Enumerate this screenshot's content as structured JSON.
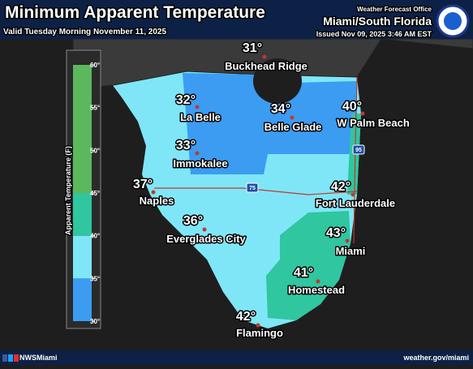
{
  "header": {
    "title": "Minimum Apparent Temperature",
    "valid": "Valid Tuesday Morning November 11, 2025",
    "office": "Weather Forecast Office",
    "region": "Miami/South Florida",
    "issued": "Issued Nov 09, 2025 3:46 AM EST"
  },
  "legend": {
    "title": "Apparent Temperature (F)",
    "ticks": [
      {
        "value": 60,
        "label": "60°"
      },
      {
        "value": 55,
        "label": "55°"
      },
      {
        "value": 50,
        "label": "50°"
      },
      {
        "value": 45,
        "label": "45°"
      },
      {
        "value": 40,
        "label": "40°"
      },
      {
        "value": 35,
        "label": "35°"
      },
      {
        "value": 30,
        "label": "30°"
      }
    ],
    "bands": [
      {
        "from": 30,
        "to": 35,
        "color": "#3b9cf2"
      },
      {
        "from": 35,
        "to": 40,
        "color": "#7fe6f7"
      },
      {
        "from": 40,
        "to": 45,
        "color": "#2fc6a0"
      },
      {
        "from": 45,
        "to": 60,
        "color": "#5cb85c"
      }
    ]
  },
  "cities": [
    {
      "name": "Buckhead Ridge",
      "temp": {
        "value": 31,
        "label": "31°"
      }
    },
    {
      "name": "La Belle",
      "temp": {
        "value": 32,
        "label": "32°"
      }
    },
    {
      "name": "Belle Glade",
      "temp": {
        "value": 34,
        "label": "34°"
      }
    },
    {
      "name": "W Palm Beach",
      "temp": {
        "value": 40,
        "label": "40°"
      }
    },
    {
      "name": "Immokalee",
      "temp": {
        "value": 33,
        "label": "33°"
      }
    },
    {
      "name": "Naples",
      "temp": {
        "value": 37,
        "label": "37°"
      }
    },
    {
      "name": "Fort Lauderdale",
      "temp": {
        "value": 42,
        "label": "42°"
      }
    },
    {
      "name": "Everglades City",
      "temp": {
        "value": 36,
        "label": "36°"
      }
    },
    {
      "name": "Miami",
      "temp": {
        "value": 43,
        "label": "43°"
      }
    },
    {
      "name": "Homestead",
      "temp": {
        "value": 41,
        "label": "41°"
      }
    },
    {
      "name": "Flamingo",
      "temp": {
        "value": 42,
        "label": "42°"
      }
    }
  ],
  "highways": [
    "75",
    "95"
  ],
  "footer": {
    "handle": "NWSMiami",
    "site": "weather.gov/miami"
  }
}
